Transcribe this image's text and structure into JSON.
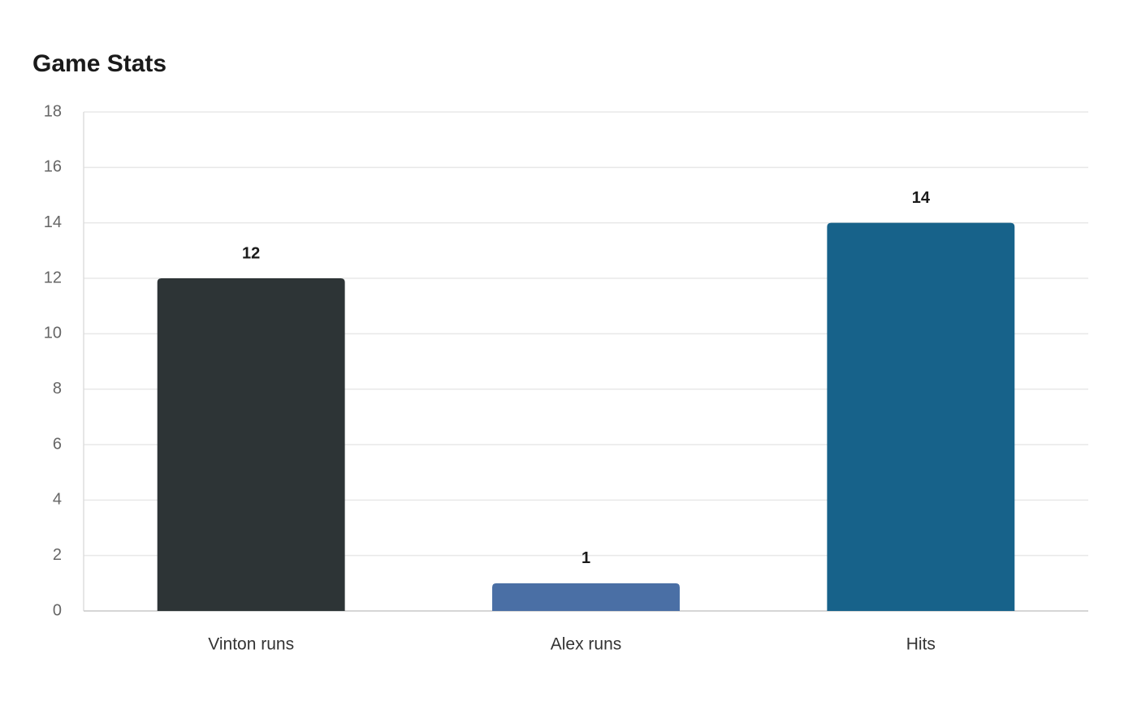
{
  "chart_data": {
    "type": "bar",
    "title": "Game Stats",
    "categories": [
      "Vinton runs",
      "Alex runs",
      "Hits"
    ],
    "values": [
      12,
      1,
      14
    ],
    "colors": [
      "#2d3436",
      "#4a6fa5",
      "#17628a"
    ],
    "ylim": [
      0,
      18
    ],
    "yticks": [
      0,
      2,
      4,
      6,
      8,
      10,
      12,
      14,
      16,
      18
    ],
    "grid": true
  }
}
